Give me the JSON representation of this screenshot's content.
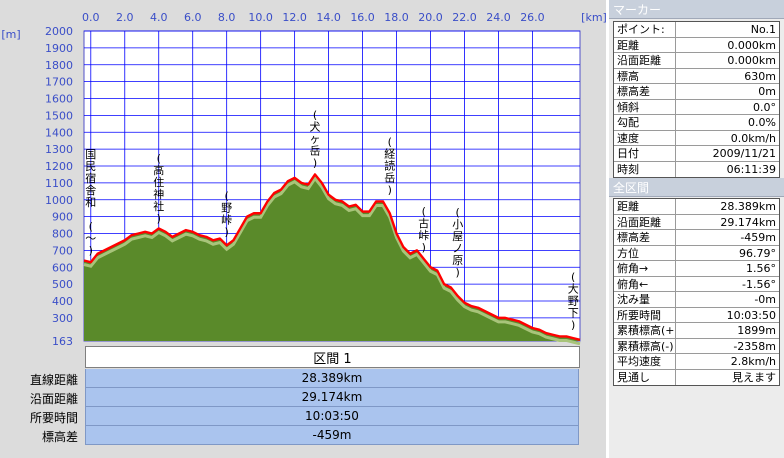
{
  "chart_data": {
    "type": "area",
    "x_unit_label": "[km]",
    "y_unit_label": "[m]",
    "xlim": [
      -0.4,
      28.8
    ],
    "ylim": [
      163,
      2000
    ],
    "x_tick_labels": [
      "0.0",
      "2.0",
      "4.0",
      "6.0",
      "8.0",
      "10.0",
      "12.0",
      "14.0",
      "16.0",
      "18.0",
      "20.0",
      "22.0",
      "24.0",
      "26.0"
    ],
    "x_ticks": [
      0,
      2,
      4,
      6,
      8,
      10,
      12,
      14,
      16,
      18,
      20,
      22,
      24,
      26
    ],
    "y_ticks": [
      163,
      300,
      400,
      500,
      600,
      700,
      800,
      900,
      1000,
      1100,
      1200,
      1300,
      1400,
      1500,
      1600,
      1700,
      1800,
      1900,
      2000
    ],
    "y_tick_labels": [
      "163",
      "300",
      "400",
      "500",
      "600",
      "700",
      "800",
      "900",
      "1000",
      "1100",
      "1200",
      "1300",
      "1400",
      "1500",
      "1600",
      "1700",
      "1800",
      "1900",
      "2000"
    ],
    "grid": true,
    "colors": {
      "plot_bg": "#ffffff",
      "grid": "#0000ff",
      "fill": "#5a8a2a",
      "fill_light": "#a8c47a",
      "line": "#ff0000",
      "tick_text": "#3a4ec8",
      "annotation": "#000000"
    },
    "profile": {
      "x": [
        -0.4,
        0.0,
        0.4,
        0.8,
        1.2,
        1.6,
        2.0,
        2.4,
        2.8,
        3.2,
        3.6,
        4.0,
        4.4,
        4.8,
        5.2,
        5.6,
        6.0,
        6.4,
        6.8,
        7.2,
        7.6,
        8.0,
        8.4,
        8.8,
        9.2,
        9.6,
        10.0,
        10.4,
        10.8,
        11.2,
        11.6,
        12.0,
        12.4,
        12.8,
        13.2,
        13.6,
        14.0,
        14.4,
        14.8,
        15.2,
        15.6,
        16.0,
        16.4,
        16.8,
        17.2,
        17.6,
        18.0,
        18.4,
        18.8,
        19.2,
        19.6,
        20.0,
        20.4,
        20.8,
        21.2,
        21.6,
        22.0,
        22.4,
        22.8,
        23.2,
        23.6,
        24.0,
        24.4,
        24.8,
        25.2,
        25.6,
        26.0,
        26.4,
        26.8,
        27.2,
        27.6,
        28.0,
        28.4,
        28.8
      ],
      "y": [
        640,
        630,
        680,
        700,
        720,
        740,
        760,
        790,
        800,
        810,
        800,
        830,
        810,
        780,
        800,
        820,
        810,
        790,
        780,
        760,
        770,
        730,
        760,
        830,
        900,
        920,
        920,
        990,
        1040,
        1060,
        1110,
        1130,
        1100,
        1090,
        1150,
        1100,
        1030,
        1000,
        990,
        960,
        970,
        930,
        930,
        990,
        990,
        920,
        800,
        720,
        680,
        700,
        650,
        600,
        580,
        500,
        480,
        430,
        390,
        370,
        360,
        340,
        320,
        300,
        300,
        290,
        280,
        260,
        240,
        230,
        210,
        200,
        190,
        190,
        180,
        170
      ]
    },
    "annotations": [
      {
        "x": 0.0,
        "y": 630,
        "label": "国民宿舎和 (〜)"
      },
      {
        "x": 4.0,
        "y": 820,
        "label": "(高住神社)"
      },
      {
        "x": 8.0,
        "y": 740,
        "label": "(野峠)"
      },
      {
        "x": 13.2,
        "y": 1150,
        "label": "(犬ヶ岳)"
      },
      {
        "x": 17.6,
        "y": 990,
        "label": "(経読岳)"
      },
      {
        "x": 19.6,
        "y": 650,
        "label": "(古峠)"
      },
      {
        "x": 21.6,
        "y": 500,
        "label": "(小屋ノ原)"
      },
      {
        "x": 28.4,
        "y": 190,
        "label": "(大野下)"
      }
    ]
  },
  "section_header": "区間 1",
  "summary": [
    {
      "label": "直線距離",
      "value": "28.389km"
    },
    {
      "label": "沿面距離",
      "value": "29.174km"
    },
    {
      "label": "所要時間",
      "value": "10:03:50"
    },
    {
      "label": "標高差",
      "value": "-459m"
    }
  ],
  "marker_panel": {
    "title": "マーカー",
    "rows": [
      {
        "label": "ポイント:",
        "value": "No.1"
      },
      {
        "label": "距離",
        "value": "0.000km"
      },
      {
        "label": "沿面距離",
        "value": "0.000km"
      },
      {
        "label": "標高",
        "value": "630m"
      },
      {
        "label": "標高差",
        "value": "0m"
      },
      {
        "label": "傾斜",
        "value": "0.0°"
      },
      {
        "label": "勾配",
        "value": "0.0%"
      },
      {
        "label": "速度",
        "value": "0.0km/h"
      },
      {
        "label": "日付",
        "value": "2009/11/21"
      },
      {
        "label": "時刻",
        "value": "06:11:39"
      }
    ]
  },
  "section_panel": {
    "title": "全区間",
    "rows": [
      {
        "label": "距離",
        "value": "28.389km"
      },
      {
        "label": "沿面距離",
        "value": "29.174km"
      },
      {
        "label": "標高差",
        "value": "-459m"
      },
      {
        "label": "方位",
        "value": "96.79°"
      },
      {
        "label": "俯角→",
        "value": "1.56°"
      },
      {
        "label": "俯角←",
        "value": "-1.56°"
      },
      {
        "label": "沈み量",
        "value": "-0m"
      },
      {
        "label": "所要時間",
        "value": "10:03:50"
      },
      {
        "label": "累積標高(+)",
        "value": "1899m"
      },
      {
        "label": "累積標高(-)",
        "value": "-2358m"
      },
      {
        "label": "平均速度",
        "value": "2.8km/h"
      },
      {
        "label": "見通し",
        "value": "見えます"
      }
    ]
  }
}
